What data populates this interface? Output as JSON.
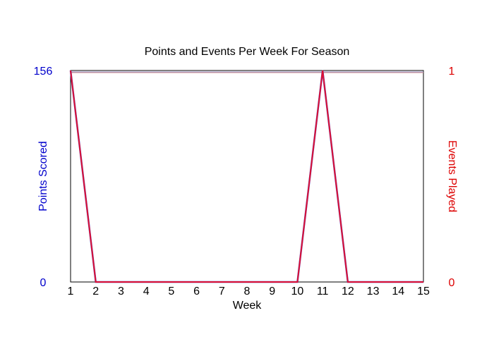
{
  "colors": {
    "background": "#ffffff",
    "frame": "#000000",
    "points_series": "#4444cc",
    "events_series": "#dd1133",
    "left_axis_text": "#0000cc",
    "right_axis_text": "#dd0000"
  },
  "chart_data": {
    "type": "line",
    "title": "Points and Events Per Week For Season",
    "xlabel": "Week",
    "ylabel_left": "Points Scored",
    "ylabel_right": "Events Played",
    "x": [
      1,
      2,
      3,
      4,
      5,
      6,
      7,
      8,
      9,
      10,
      11,
      12,
      13,
      14,
      15
    ],
    "xlim": [
      1,
      15
    ],
    "ylim_left": [
      0,
      156
    ],
    "ylim_right": [
      0,
      1
    ],
    "yticks_left": [
      "0",
      "156"
    ],
    "yticks_right": [
      "0",
      "1"
    ],
    "grid": false,
    "legend": "none",
    "series": [
      {
        "axis": "left",
        "values": [
          156,
          0,
          0,
          0,
          0,
          0,
          0,
          0,
          0,
          0,
          156,
          0,
          0,
          0,
          0
        ]
      },
      {
        "axis": "right",
        "values": [
          1,
          0,
          0,
          0,
          0,
          0,
          0,
          0,
          0,
          0,
          1,
          0,
          0,
          0,
          0
        ]
      }
    ]
  }
}
